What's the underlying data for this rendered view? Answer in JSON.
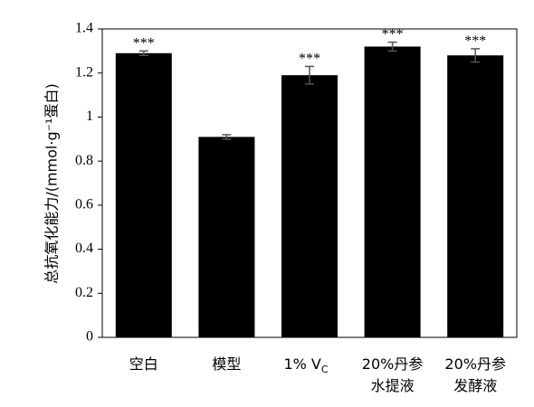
{
  "chart_data": {
    "type": "bar",
    "categories": [
      [
        "空白"
      ],
      [
        "模型"
      ],
      [
        "1% V",
        "C"
      ],
      [
        "20%丹参",
        "水提液"
      ],
      [
        "20%丹参",
        "发酵液"
      ]
    ],
    "values": [
      1.29,
      0.91,
      1.19,
      1.32,
      1.28
    ],
    "errors": [
      0.01,
      0.01,
      0.04,
      0.02,
      0.03
    ],
    "annotations": [
      "***",
      "",
      "***",
      "***",
      "***"
    ],
    "ylabel": "总抗氧化能力/(mmol·g⁻¹蛋白)",
    "ylim": [
      0,
      1.4
    ],
    "yticks": [
      "0",
      "0.2",
      "0.4",
      "0.6",
      "0.8",
      "1",
      "1.2",
      "1.4"
    ],
    "grid": false,
    "bar_color": "#000000"
  }
}
